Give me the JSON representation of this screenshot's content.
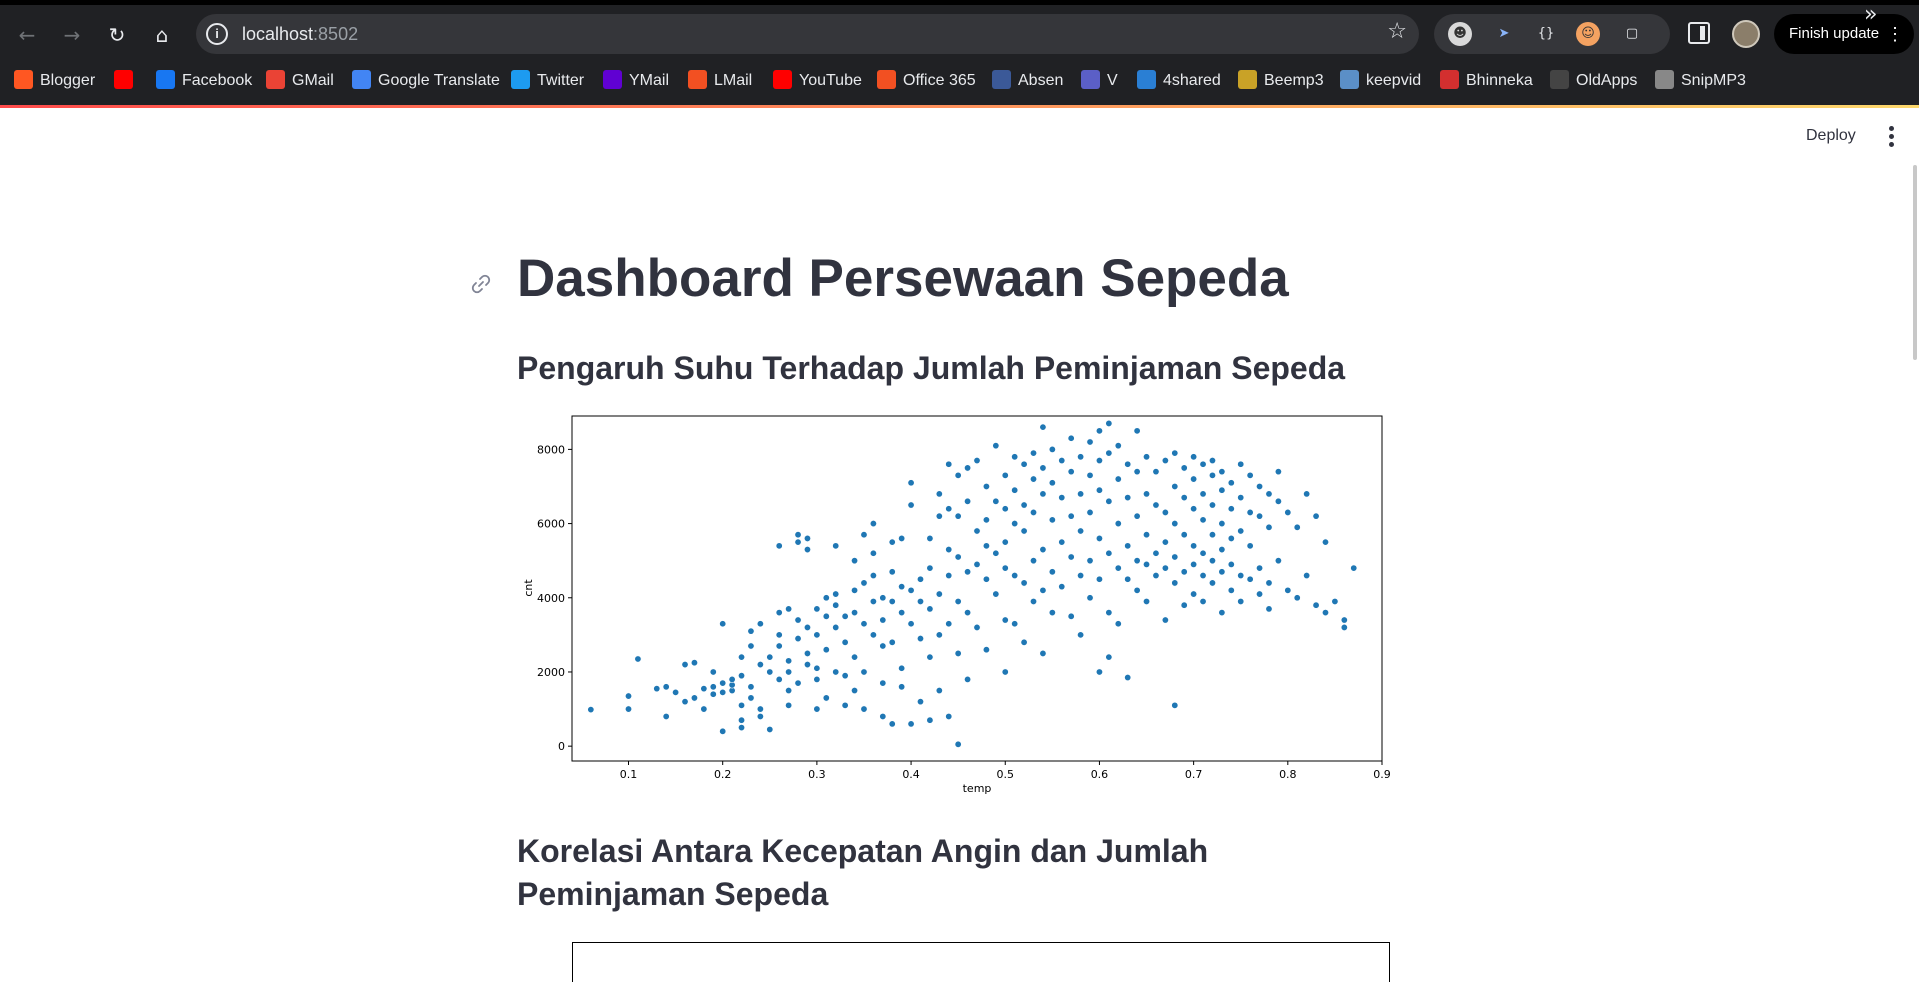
{
  "browser": {
    "url_host": "localhost",
    "url_port": ":8502",
    "finish_update_label": "Finish update",
    "bookmarks": [
      {
        "label": "Blogger",
        "icon": "blogger-icon",
        "color": "#ff5722"
      },
      {
        "label": "",
        "icon": "youtube-icon",
        "color": "#ff0000"
      },
      {
        "label": "Facebook",
        "icon": "facebook-icon",
        "color": "#1877f2"
      },
      {
        "label": "GMail",
        "icon": "gmail-icon",
        "color": "#ea4335"
      },
      {
        "label": "Google Translate",
        "icon": "google-translate-icon",
        "color": "#4285f4"
      },
      {
        "label": "Twitter",
        "icon": "twitter-icon",
        "color": "#1d9bf0"
      },
      {
        "label": "YMail",
        "icon": "ymail-icon",
        "color": "#6001d2"
      },
      {
        "label": "LMail",
        "icon": "microsoft-icon",
        "color": "#f25022"
      },
      {
        "label": "YouTube",
        "icon": "youtube-icon",
        "color": "#ff0000"
      },
      {
        "label": "Office 365",
        "icon": "office-icon",
        "color": "#f25022"
      },
      {
        "label": "Absen",
        "icon": "absen-icon",
        "color": "#3b5998"
      },
      {
        "label": "V",
        "icon": "teams-icon",
        "color": "#5b5fc7"
      },
      {
        "label": "4shared",
        "icon": "4shared-icon",
        "color": "#2a7fd4"
      },
      {
        "label": "Beemp3",
        "icon": "beemp3-icon",
        "color": "#c9a227"
      },
      {
        "label": "keepvid",
        "icon": "keepvid-icon",
        "color": "#5b8fc7"
      },
      {
        "label": "Bhinneka",
        "icon": "bhinneka-icon",
        "color": "#d32f2f"
      },
      {
        "label": "OldApps",
        "icon": "oldapps-icon",
        "color": "#444444"
      },
      {
        "label": "SnipMP3",
        "icon": "snipmp3-icon",
        "color": "#888888"
      }
    ]
  },
  "app": {
    "deploy_label": "Deploy",
    "title": "Dashboard Persewaan Sepeda",
    "section1_title": "Pengaruh Suhu Terhadap Jumlah Peminjaman Sepeda",
    "section2_title": "Korelasi Antara Kecepatan Angin dan Jumlah Peminjaman Sepeda",
    "accent_color": "#ff4b4b",
    "text_color": "#31333f"
  },
  "chart_data": {
    "type": "scatter",
    "title": "",
    "xlabel": "temp",
    "ylabel": "cnt",
    "xlim": [
      0.04,
      0.9
    ],
    "ylim": [
      -400,
      8900
    ],
    "xticks": [
      0.1,
      0.2,
      0.3,
      0.4,
      0.5,
      0.6,
      0.7,
      0.8,
      0.9
    ],
    "yticks": [
      0,
      2000,
      4000,
      6000,
      8000
    ],
    "grid": false,
    "color": "#1f77b4",
    "points": [
      [
        0.06,
        985
      ],
      [
        0.1,
        1000
      ],
      [
        0.1,
        1350
      ],
      [
        0.11,
        2350
      ],
      [
        0.13,
        1550
      ],
      [
        0.14,
        1600
      ],
      [
        0.14,
        800
      ],
      [
        0.15,
        1450
      ],
      [
        0.16,
        2200
      ],
      [
        0.16,
        1200
      ],
      [
        0.17,
        1300
      ],
      [
        0.17,
        2250
      ],
      [
        0.18,
        1000
      ],
      [
        0.18,
        1550
      ],
      [
        0.19,
        1400
      ],
      [
        0.19,
        1600
      ],
      [
        0.19,
        2000
      ],
      [
        0.2,
        1450
      ],
      [
        0.2,
        1700
      ],
      [
        0.2,
        400
      ],
      [
        0.2,
        3300
      ],
      [
        0.21,
        1500
      ],
      [
        0.21,
        1650
      ],
      [
        0.21,
        1800
      ],
      [
        0.22,
        2400
      ],
      [
        0.22,
        1900
      ],
      [
        0.22,
        1100
      ],
      [
        0.22,
        700
      ],
      [
        0.22,
        500
      ],
      [
        0.23,
        2700
      ],
      [
        0.23,
        3100
      ],
      [
        0.23,
        1300
      ],
      [
        0.23,
        1600
      ],
      [
        0.24,
        2200
      ],
      [
        0.24,
        1000
      ],
      [
        0.24,
        800
      ],
      [
        0.24,
        3300
      ],
      [
        0.25,
        2400
      ],
      [
        0.25,
        2000
      ],
      [
        0.25,
        450
      ],
      [
        0.26,
        1800
      ],
      [
        0.26,
        2700
      ],
      [
        0.26,
        3000
      ],
      [
        0.26,
        3600
      ],
      [
        0.26,
        5400
      ],
      [
        0.27,
        2300
      ],
      [
        0.27,
        2000
      ],
      [
        0.27,
        1500
      ],
      [
        0.27,
        3700
      ],
      [
        0.27,
        1100
      ],
      [
        0.28,
        2900
      ],
      [
        0.28,
        3400
      ],
      [
        0.28,
        5500
      ],
      [
        0.28,
        5700
      ],
      [
        0.28,
        1700
      ],
      [
        0.29,
        2200
      ],
      [
        0.29,
        2500
      ],
      [
        0.29,
        3200
      ],
      [
        0.29,
        5300
      ],
      [
        0.29,
        5600
      ],
      [
        0.3,
        3000
      ],
      [
        0.3,
        3700
      ],
      [
        0.3,
        2100
      ],
      [
        0.3,
        1800
      ],
      [
        0.3,
        1000
      ],
      [
        0.31,
        3500
      ],
      [
        0.31,
        4000
      ],
      [
        0.31,
        2600
      ],
      [
        0.31,
        1300
      ],
      [
        0.32,
        3800
      ],
      [
        0.32,
        3200
      ],
      [
        0.32,
        4100
      ],
      [
        0.32,
        5400
      ],
      [
        0.32,
        2000
      ],
      [
        0.33,
        3500
      ],
      [
        0.33,
        2800
      ],
      [
        0.33,
        1900
      ],
      [
        0.33,
        1100
      ],
      [
        0.34,
        3600
      ],
      [
        0.34,
        4200
      ],
      [
        0.34,
        5000
      ],
      [
        0.34,
        2400
      ],
      [
        0.34,
        1500
      ],
      [
        0.35,
        4400
      ],
      [
        0.35,
        3300
      ],
      [
        0.35,
        5700
      ],
      [
        0.35,
        2000
      ],
      [
        0.35,
        1000
      ],
      [
        0.36,
        4600
      ],
      [
        0.36,
        3900
      ],
      [
        0.36,
        5200
      ],
      [
        0.36,
        3000
      ],
      [
        0.36,
        6000
      ],
      [
        0.37,
        4000
      ],
      [
        0.37,
        3400
      ],
      [
        0.37,
        2700
      ],
      [
        0.37,
        1700
      ],
      [
        0.37,
        800
      ],
      [
        0.38,
        5500
      ],
      [
        0.38,
        4700
      ],
      [
        0.38,
        3900
      ],
      [
        0.38,
        2800
      ],
      [
        0.38,
        600
      ],
      [
        0.39,
        5600
      ],
      [
        0.39,
        4300
      ],
      [
        0.39,
        3600
      ],
      [
        0.39,
        2100
      ],
      [
        0.39,
        1600
      ],
      [
        0.4,
        6500
      ],
      [
        0.4,
        7100
      ],
      [
        0.4,
        4200
      ],
      [
        0.4,
        3300
      ],
      [
        0.4,
        600
      ],
      [
        0.41,
        4500
      ],
      [
        0.41,
        3900
      ],
      [
        0.41,
        2900
      ],
      [
        0.41,
        1200
      ],
      [
        0.42,
        5600
      ],
      [
        0.42,
        4800
      ],
      [
        0.42,
        3700
      ],
      [
        0.42,
        2400
      ],
      [
        0.42,
        700
      ],
      [
        0.43,
        6800
      ],
      [
        0.43,
        6200
      ],
      [
        0.43,
        4100
      ],
      [
        0.43,
        3000
      ],
      [
        0.43,
        1500
      ],
      [
        0.44,
        7600
      ],
      [
        0.44,
        6400
      ],
      [
        0.44,
        5300
      ],
      [
        0.44,
        4600
      ],
      [
        0.44,
        3300
      ],
      [
        0.44,
        800
      ],
      [
        0.45,
        7300
      ],
      [
        0.45,
        6200
      ],
      [
        0.45,
        5100
      ],
      [
        0.45,
        3900
      ],
      [
        0.45,
        2500
      ],
      [
        0.45,
        50
      ],
      [
        0.46,
        7500
      ],
      [
        0.46,
        6600
      ],
      [
        0.46,
        4700
      ],
      [
        0.46,
        3600
      ],
      [
        0.46,
        1800
      ],
      [
        0.47,
        7700
      ],
      [
        0.47,
        5800
      ],
      [
        0.47,
        4900
      ],
      [
        0.47,
        3200
      ],
      [
        0.48,
        7000
      ],
      [
        0.48,
        6100
      ],
      [
        0.48,
        5400
      ],
      [
        0.48,
        4500
      ],
      [
        0.48,
        2600
      ],
      [
        0.49,
        8100
      ],
      [
        0.49,
        6600
      ],
      [
        0.49,
        5200
      ],
      [
        0.49,
        4100
      ],
      [
        0.5,
        7300
      ],
      [
        0.5,
        6400
      ],
      [
        0.5,
        5500
      ],
      [
        0.5,
        4800
      ],
      [
        0.5,
        3400
      ],
      [
        0.5,
        2000
      ],
      [
        0.51,
        7800
      ],
      [
        0.51,
        6900
      ],
      [
        0.51,
        6000
      ],
      [
        0.51,
        4600
      ],
      [
        0.51,
        3300
      ],
      [
        0.52,
        7600
      ],
      [
        0.52,
        6500
      ],
      [
        0.52,
        5800
      ],
      [
        0.52,
        4400
      ],
      [
        0.52,
        2800
      ],
      [
        0.53,
        7900
      ],
      [
        0.53,
        7200
      ],
      [
        0.53,
        6300
      ],
      [
        0.53,
        5000
      ],
      [
        0.53,
        3900
      ],
      [
        0.54,
        8600
      ],
      [
        0.54,
        7500
      ],
      [
        0.54,
        6800
      ],
      [
        0.54,
        5300
      ],
      [
        0.54,
        4200
      ],
      [
        0.54,
        2500
      ],
      [
        0.55,
        8000
      ],
      [
        0.55,
        7100
      ],
      [
        0.55,
        6100
      ],
      [
        0.55,
        4700
      ],
      [
        0.55,
        3600
      ],
      [
        0.56,
        7700
      ],
      [
        0.56,
        6700
      ],
      [
        0.56,
        5500
      ],
      [
        0.56,
        4300
      ],
      [
        0.57,
        8300
      ],
      [
        0.57,
        7400
      ],
      [
        0.57,
        6200
      ],
      [
        0.57,
        5100
      ],
      [
        0.57,
        3500
      ],
      [
        0.58,
        7800
      ],
      [
        0.58,
        6800
      ],
      [
        0.58,
        5800
      ],
      [
        0.58,
        4600
      ],
      [
        0.58,
        3000
      ],
      [
        0.59,
        8200
      ],
      [
        0.59,
        7300
      ],
      [
        0.59,
        6300
      ],
      [
        0.59,
        5000
      ],
      [
        0.59,
        4000
      ],
      [
        0.6,
        8500
      ],
      [
        0.6,
        7700
      ],
      [
        0.6,
        6900
      ],
      [
        0.6,
        5600
      ],
      [
        0.6,
        4500
      ],
      [
        0.6,
        2000
      ],
      [
        0.61,
        8700
      ],
      [
        0.61,
        7900
      ],
      [
        0.61,
        6600
      ],
      [
        0.61,
        5200
      ],
      [
        0.61,
        3600
      ],
      [
        0.61,
        2400
      ],
      [
        0.62,
        8100
      ],
      [
        0.62,
        7200
      ],
      [
        0.62,
        6000
      ],
      [
        0.62,
        4800
      ],
      [
        0.62,
        3300
      ],
      [
        0.63,
        7600
      ],
      [
        0.63,
        6700
      ],
      [
        0.63,
        5400
      ],
      [
        0.63,
        4500
      ],
      [
        0.63,
        1850
      ],
      [
        0.64,
        8500
      ],
      [
        0.64,
        7400
      ],
      [
        0.64,
        6200
      ],
      [
        0.64,
        5000
      ],
      [
        0.64,
        4200
      ],
      [
        0.65,
        7800
      ],
      [
        0.65,
        6800
      ],
      [
        0.65,
        5700
      ],
      [
        0.65,
        4900
      ],
      [
        0.65,
        3900
      ],
      [
        0.66,
        7400
      ],
      [
        0.66,
        6500
      ],
      [
        0.66,
        5200
      ],
      [
        0.66,
        4600
      ],
      [
        0.67,
        7700
      ],
      [
        0.67,
        6300
      ],
      [
        0.67,
        5500
      ],
      [
        0.67,
        4800
      ],
      [
        0.67,
        3400
      ],
      [
        0.68,
        7900
      ],
      [
        0.68,
        7000
      ],
      [
        0.68,
        6000
      ],
      [
        0.68,
        5100
      ],
      [
        0.68,
        4400
      ],
      [
        0.68,
        1100
      ],
      [
        0.69,
        7500
      ],
      [
        0.69,
        6700
      ],
      [
        0.69,
        5700
      ],
      [
        0.69,
        4700
      ],
      [
        0.69,
        3800
      ],
      [
        0.7,
        7800
      ],
      [
        0.7,
        7200
      ],
      [
        0.7,
        6400
      ],
      [
        0.7,
        5400
      ],
      [
        0.7,
        4900
      ],
      [
        0.7,
        4100
      ],
      [
        0.71,
        7600
      ],
      [
        0.71,
        6800
      ],
      [
        0.71,
        6100
      ],
      [
        0.71,
        5200
      ],
      [
        0.71,
        4600
      ],
      [
        0.71,
        3900
      ],
      [
        0.72,
        7700
      ],
      [
        0.72,
        7300
      ],
      [
        0.72,
        6500
      ],
      [
        0.72,
        5700
      ],
      [
        0.72,
        5000
      ],
      [
        0.72,
        4400
      ],
      [
        0.73,
        7400
      ],
      [
        0.73,
        6900
      ],
      [
        0.73,
        6000
      ],
      [
        0.73,
        5300
      ],
      [
        0.73,
        4700
      ],
      [
        0.73,
        3600
      ],
      [
        0.74,
        7100
      ],
      [
        0.74,
        6400
      ],
      [
        0.74,
        5600
      ],
      [
        0.74,
        4900
      ],
      [
        0.74,
        4200
      ],
      [
        0.75,
        7600
      ],
      [
        0.75,
        6700
      ],
      [
        0.75,
        5800
      ],
      [
        0.75,
        4600
      ],
      [
        0.75,
        3900
      ],
      [
        0.76,
        7300
      ],
      [
        0.76,
        6300
      ],
      [
        0.76,
        5400
      ],
      [
        0.76,
        4500
      ],
      [
        0.77,
        7000
      ],
      [
        0.77,
        6200
      ],
      [
        0.77,
        4800
      ],
      [
        0.77,
        4100
      ],
      [
        0.78,
        6800
      ],
      [
        0.78,
        5900
      ],
      [
        0.78,
        4400
      ],
      [
        0.78,
        3700
      ],
      [
        0.79,
        7400
      ],
      [
        0.79,
        6600
      ],
      [
        0.79,
        5000
      ],
      [
        0.8,
        6300
      ],
      [
        0.8,
        4200
      ],
      [
        0.81,
        5900
      ],
      [
        0.81,
        4000
      ],
      [
        0.82,
        6800
      ],
      [
        0.82,
        4600
      ],
      [
        0.83,
        6200
      ],
      [
        0.83,
        3800
      ],
      [
        0.84,
        5500
      ],
      [
        0.84,
        3600
      ],
      [
        0.85,
        3900
      ],
      [
        0.86,
        3400
      ],
      [
        0.86,
        3200
      ],
      [
        0.87,
        4800
      ]
    ]
  }
}
